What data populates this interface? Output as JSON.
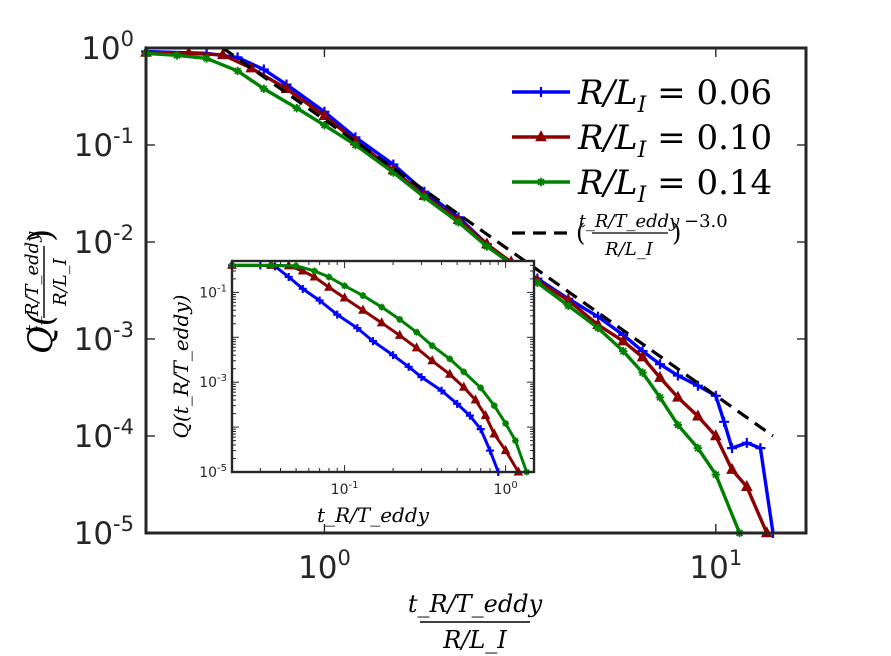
{
  "chart_data": [
    {
      "id": "main",
      "type": "line",
      "xscale": "log",
      "yscale": "log",
      "xlim": [
        0.35,
        17
      ],
      "ylim": [
        1e-05,
        1
      ],
      "xticks": [
        {
          "value": 1,
          "base": "10",
          "exp": "0"
        },
        {
          "value": 10,
          "base": "10",
          "exp": "1"
        }
      ],
      "yticks": [
        {
          "value": 1,
          "base": "10",
          "exp": "0"
        },
        {
          "value": 0.1,
          "base": "10",
          "exp": "-1"
        },
        {
          "value": 0.01,
          "base": "10",
          "exp": "-2"
        },
        {
          "value": 0.001,
          "base": "10",
          "exp": "-3"
        },
        {
          "value": 0.0001,
          "base": "10",
          "exp": "-4"
        },
        {
          "value": 1e-05,
          "base": "10",
          "exp": "-5"
        }
      ],
      "xlabel": {
        "num": "t_R/T_eddy",
        "den": "R/L_I"
      },
      "ylabel": "Q((t_R/T_eddy)/(R/L_I))",
      "legend_position": "top-right",
      "series": [
        {
          "name": "R/L_I = 0.06",
          "label_lhs": "R/L",
          "label_sub": "I",
          "label_rhs": " = 0.06",
          "color": "#0000ff",
          "marker": "plus",
          "x": [
            0.35,
            0.5,
            0.6,
            0.7,
            0.8,
            1.0,
            1.2,
            1.5,
            1.8,
            2.2,
            2.6,
            3.0,
            3.5,
            4.2,
            5.0,
            5.8,
            6.5,
            7.2,
            8.0,
            9.0,
            10.0,
            10.5,
            11.0,
            12.0,
            13.0,
            14.0
          ],
          "y": [
            0.92,
            0.88,
            0.8,
            0.6,
            0.42,
            0.22,
            0.12,
            0.063,
            0.033,
            0.018,
            0.0095,
            0.0058,
            0.0042,
            0.0026,
            0.0017,
            0.0011,
            0.00075,
            0.00055,
            0.00042,
            0.00033,
            0.00026,
            0.00014,
            7.5e-05,
            8.5e-05,
            7.5e-05,
            1e-05
          ]
        },
        {
          "name": "R/L_I = 0.10",
          "label_lhs": "R/L",
          "label_sub": "I",
          "label_rhs": " = 0.10",
          "color": "#8b0000",
          "marker": "triangle",
          "x": [
            0.35,
            0.45,
            0.55,
            0.65,
            0.8,
            1.0,
            1.2,
            1.5,
            1.8,
            2.2,
            2.6,
            3.0,
            3.5,
            4.2,
            5.0,
            5.8,
            6.5,
            7.2,
            8.0,
            9.0,
            10.0,
            11.0,
            12.0,
            13.5
          ],
          "y": [
            0.9,
            0.88,
            0.85,
            0.62,
            0.38,
            0.2,
            0.11,
            0.055,
            0.03,
            0.017,
            0.0095,
            0.0062,
            0.004,
            0.0025,
            0.0014,
            0.00095,
            0.00065,
            0.0004,
            0.00025,
            0.00016,
            0.0001,
            4.5e-05,
            3e-05,
            1e-05
          ]
        },
        {
          "name": "R/L_I = 0.14",
          "label_lhs": "R/L",
          "label_sub": "I",
          "label_rhs": " = 0.14",
          "color": "#008000",
          "marker": "star",
          "x": [
            0.35,
            0.42,
            0.5,
            0.6,
            0.7,
            0.85,
            1.0,
            1.2,
            1.5,
            1.8,
            2.2,
            2.6,
            3.0,
            3.5,
            4.2,
            5.0,
            5.8,
            6.5,
            7.2,
            8.0,
            9.0,
            10.0,
            11.5
          ],
          "y": [
            0.88,
            0.84,
            0.78,
            0.58,
            0.38,
            0.24,
            0.16,
            0.1,
            0.052,
            0.029,
            0.016,
            0.009,
            0.006,
            0.0038,
            0.0022,
            0.0013,
            0.00075,
            0.00045,
            0.00025,
            0.00013,
            7.5e-05,
            4e-05,
            1e-05
          ]
        }
      ],
      "reference_line": {
        "name": "power law",
        "label_num": "t_R/T_eddy",
        "label_den": "R/L_I",
        "label_exp": "−3.0",
        "exponent": -3.0,
        "x": [
          0.55,
          14
        ],
        "y": [
          1.0,
          0.0001
        ],
        "color": "#000000",
        "style": "dashed"
      }
    },
    {
      "id": "inset",
      "type": "line",
      "xscale": "log",
      "yscale": "log",
      "xlim": [
        0.02,
        1.5
      ],
      "ylim": [
        1e-05,
        0.5
      ],
      "xticks": [
        {
          "value": 0.1,
          "base": "10",
          "exp": "-1"
        },
        {
          "value": 1,
          "base": "10",
          "exp": "0"
        }
      ],
      "yticks": [
        {
          "value": 0.1,
          "base": "10",
          "exp": "-1"
        },
        {
          "value": 0.001,
          "base": "10",
          "exp": "-3"
        },
        {
          "value": 1e-05,
          "base": "10",
          "exp": "-5"
        }
      ],
      "xlabel": "t_R/T_eddy",
      "ylabel": "Q(t_R/T_eddy)",
      "series": [
        {
          "name": "R/L_I = 0.06",
          "color": "#0000ff",
          "marker": "plus",
          "x": [
            0.02,
            0.03,
            0.037,
            0.045,
            0.055,
            0.07,
            0.09,
            0.12,
            0.15,
            0.2,
            0.25,
            0.3,
            0.4,
            0.5,
            0.6,
            0.7,
            0.8,
            0.9
          ],
          "y": [
            0.4,
            0.4,
            0.38,
            0.22,
            0.12,
            0.066,
            0.032,
            0.016,
            0.0082,
            0.004,
            0.0022,
            0.0013,
            0.00065,
            0.00033,
            0.00018,
            9e-05,
            3e-05,
            1e-05
          ]
        },
        {
          "name": "R/L_I = 0.10",
          "color": "#8b0000",
          "marker": "triangle",
          "x": [
            0.02,
            0.035,
            0.045,
            0.055,
            0.065,
            0.08,
            0.1,
            0.13,
            0.17,
            0.22,
            0.28,
            0.35,
            0.45,
            0.55,
            0.65,
            0.75,
            0.85,
            1.0,
            1.2
          ],
          "y": [
            0.4,
            0.4,
            0.39,
            0.3,
            0.22,
            0.13,
            0.075,
            0.04,
            0.021,
            0.011,
            0.0058,
            0.003,
            0.0015,
            0.00077,
            0.0004,
            0.00018,
            7e-05,
            3e-05,
            1e-05
          ]
        },
        {
          "name": "R/L_I = 0.14",
          "color": "#008000",
          "marker": "star",
          "x": [
            0.02,
            0.035,
            0.05,
            0.065,
            0.08,
            0.1,
            0.13,
            0.17,
            0.22,
            0.28,
            0.35,
            0.45,
            0.55,
            0.7,
            0.85,
            1.0,
            1.15,
            1.35
          ],
          "y": [
            0.4,
            0.4,
            0.39,
            0.3,
            0.22,
            0.14,
            0.085,
            0.047,
            0.025,
            0.013,
            0.0065,
            0.0033,
            0.0017,
            0.00075,
            0.0003,
            0.00012,
            5e-05,
            1e-05
          ]
        }
      ]
    }
  ]
}
